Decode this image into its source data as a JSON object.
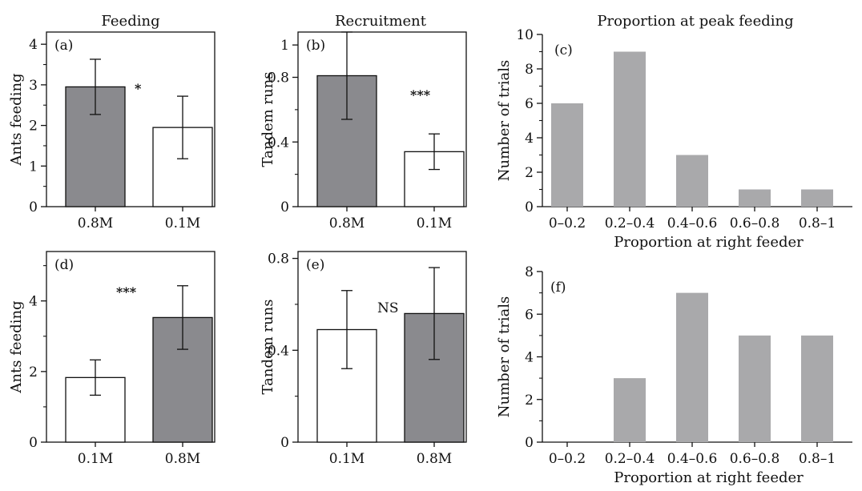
{
  "colors": {
    "dark_bar": "#8a8a8e",
    "light_bar": "#ffffff",
    "hist_bar": "#a9a9ab",
    "axis": "#111111"
  },
  "column_titles": [
    "Feeding",
    "Recruitment",
    "Proportion at peak feeding"
  ],
  "chart_data": [
    {
      "id": "a",
      "type": "bar",
      "tag": "(a)",
      "categories": [
        "0.8M",
        "0.1M"
      ],
      "values": [
        2.95,
        1.95
      ],
      "errors": [
        0.68,
        0.77
      ],
      "fills": [
        "dark",
        "light"
      ],
      "ylabel": "Ants feeding",
      "ylim": [
        0,
        4.3
      ],
      "yticks": [
        0,
        1,
        2,
        3,
        4
      ],
      "yticklabels": [
        "0",
        "1",
        "2",
        "3",
        "4"
      ],
      "minor_yticks": [
        0.5,
        1.5,
        2.5,
        3.5
      ],
      "significance": "*"
    },
    {
      "id": "b",
      "type": "bar",
      "tag": "(b)",
      "categories": [
        "0.8M",
        "0.1M"
      ],
      "values": [
        0.81,
        0.34
      ],
      "errors": [
        0.27,
        0.11
      ],
      "fills": [
        "dark",
        "light"
      ],
      "ylabel": "Tandem runs",
      "ylim": [
        0,
        1.08
      ],
      "yticks": [
        0,
        0.4,
        0.8,
        1.0
      ],
      "yticklabels": [
        "0",
        "0.4",
        "0.8",
        "1"
      ],
      "minor_yticks": [
        0.2,
        0.6
      ],
      "significance": "***"
    },
    {
      "id": "c",
      "type": "bar",
      "tag": "(c)",
      "categories": [
        "0–0.2",
        "0.2–0.4",
        "0.4–0.6",
        "0.6–0.8",
        "0.8–1"
      ],
      "values": [
        6,
        9,
        3,
        1,
        1
      ],
      "ylabel": "Number of trials",
      "xlabel": "Proportion at right feeder",
      "ylim": [
        0,
        10
      ],
      "yticks": [
        0,
        2,
        4,
        6,
        8,
        10
      ],
      "yticklabels": [
        "0",
        "2",
        "4",
        "6",
        "8",
        "10"
      ],
      "minor_yticks": [
        1,
        3,
        5,
        7,
        9
      ]
    },
    {
      "id": "d",
      "type": "bar",
      "tag": "(d)",
      "categories": [
        "0.1M",
        "0.8M"
      ],
      "values": [
        1.83,
        3.53
      ],
      "errors": [
        0.5,
        0.9
      ],
      "fills": [
        "light",
        "dark"
      ],
      "ylabel": "Ants feeding",
      "ylim": [
        0,
        5.4
      ],
      "yticks": [
        0,
        2,
        4
      ],
      "yticklabels": [
        "0",
        "2",
        "4"
      ],
      "minor_yticks": [
        1,
        3,
        5
      ],
      "significance": "***"
    },
    {
      "id": "e",
      "type": "bar",
      "tag": "(e)",
      "categories": [
        "0.1M",
        "0.8M"
      ],
      "values": [
        0.49,
        0.56
      ],
      "errors": [
        0.17,
        0.2
      ],
      "fills": [
        "light",
        "dark"
      ],
      "ylabel": "Tandem runs",
      "ylim": [
        0,
        0.83
      ],
      "yticks": [
        0,
        0.4,
        0.8
      ],
      "yticklabels": [
        "0",
        "0.4",
        "0.8"
      ],
      "minor_yticks": [
        0.2,
        0.6
      ],
      "significance": "NS"
    },
    {
      "id": "f",
      "type": "bar",
      "tag": "(f)",
      "categories": [
        "0–0.2",
        "0.2–0.4",
        "0.4–0.6",
        "0.6–0.8",
        "0.8–1"
      ],
      "values": [
        0,
        3,
        7,
        5,
        5
      ],
      "ylabel": "Number of trials",
      "xlabel": "Proportion at right feeder",
      "ylim": [
        0,
        8
      ],
      "yticks": [
        0,
        2,
        4,
        6,
        8
      ],
      "yticklabels": [
        "0",
        "2",
        "4",
        "6",
        "8"
      ],
      "minor_yticks": [
        1,
        3,
        5,
        7
      ]
    }
  ]
}
